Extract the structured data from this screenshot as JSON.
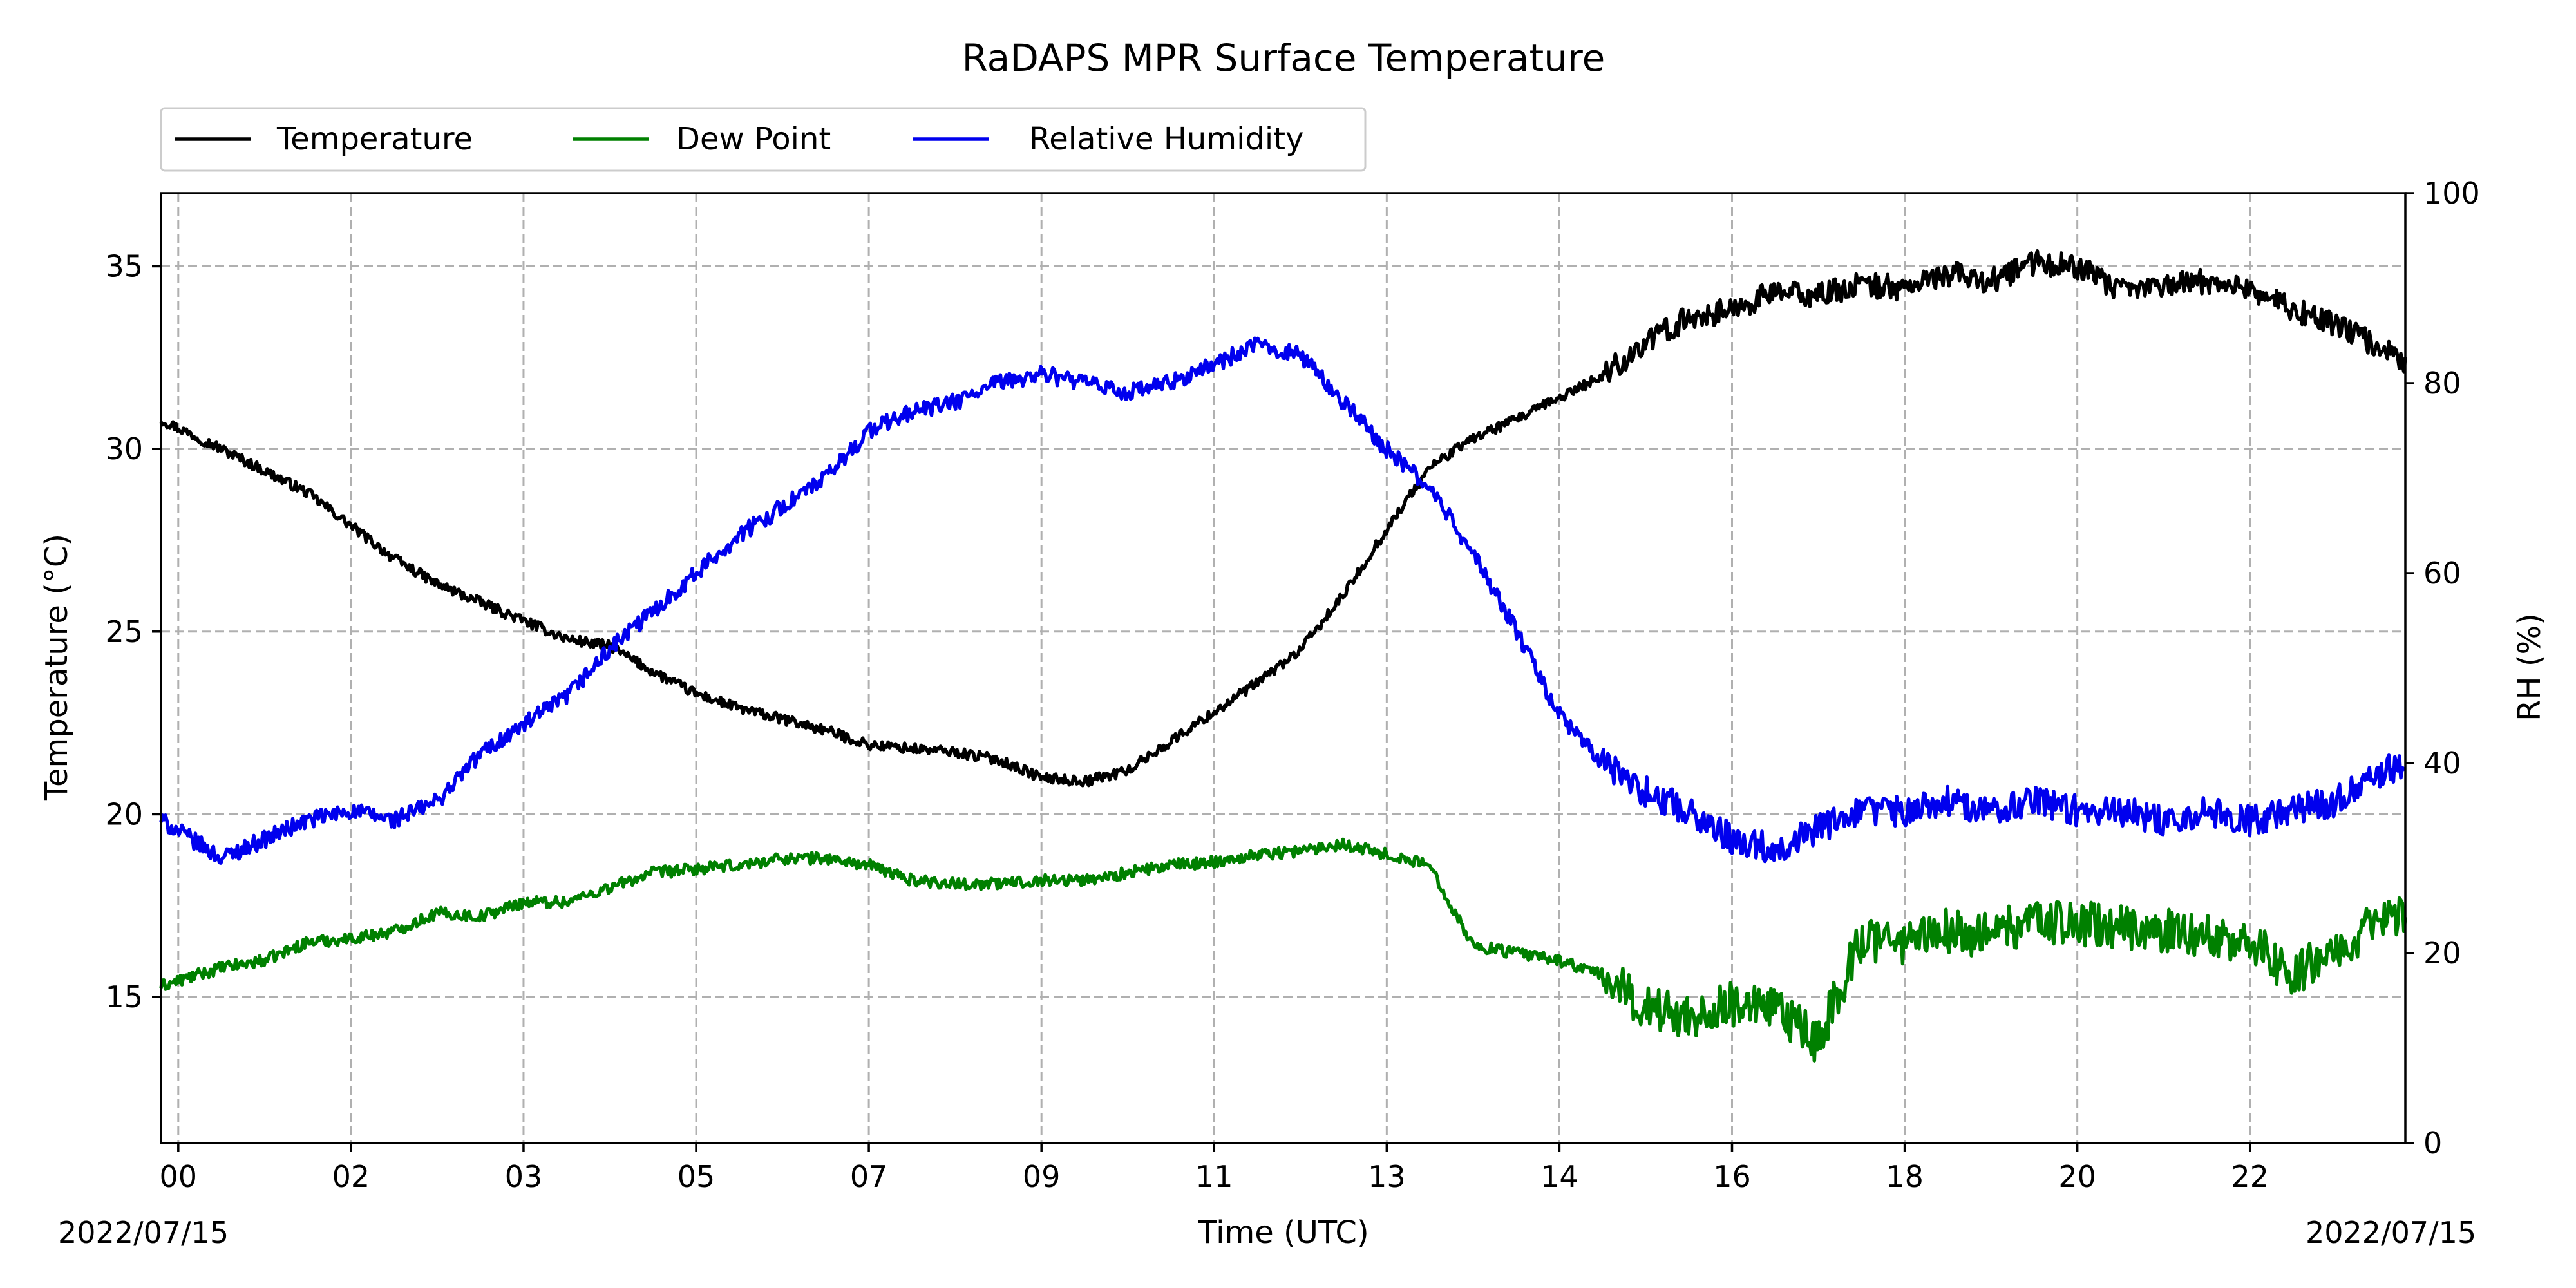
{
  "chart_data": {
    "type": "line",
    "title": "RaDAPS MPR Surface Temperature",
    "xlabel": "Time (UTC)",
    "ylabel": "Temperature ($^\\circ$C)",
    "ylabel_display": "Temperature (°C)",
    "y2label": "RH (%)",
    "ylim": [
      11,
      37
    ],
    "y2lim": [
      0,
      100
    ],
    "yticks": [
      15,
      20,
      25,
      30,
      35
    ],
    "y2ticks": [
      0,
      20,
      40,
      60,
      80,
      100
    ],
    "xlim_hours": [
      -0.2,
      25.8
    ],
    "xticks": [
      {
        "hour": 0,
        "label": "00"
      },
      {
        "hour": 2,
        "label": "02"
      },
      {
        "hour": 4,
        "label": "03"
      },
      {
        "hour": 6,
        "label": "05"
      },
      {
        "hour": 8,
        "label": "07"
      },
      {
        "hour": 10,
        "label": "09"
      },
      {
        "hour": 12,
        "label": "11"
      },
      {
        "hour": 14,
        "label": "13"
      },
      {
        "hour": 16,
        "label": "14"
      },
      {
        "hour": 18,
        "label": "16"
      },
      {
        "hour": 20,
        "label": "18"
      },
      {
        "hour": 22,
        "label": "20"
      },
      {
        "hour": 24,
        "label": "22"
      }
    ],
    "date_left": "2022/07/15",
    "date_right": "2022/07/15",
    "grid": true,
    "legend_placement": "top-left, above plot",
    "series": [
      {
        "name": "Temperature",
        "axis": "left",
        "color": "#000000",
        "x": [
          -0.2,
          0.5,
          1.0,
          1.5,
          2.0,
          2.5,
          3.0,
          3.5,
          4.0,
          4.5,
          5.0,
          5.5,
          6.0,
          6.5,
          7.0,
          7.5,
          8.0,
          8.5,
          9.0,
          9.5,
          10.0,
          10.5,
          11.0,
          11.5,
          12.0,
          12.5,
          13.0,
          13.5,
          14.0,
          14.5,
          15.0,
          15.5,
          16.0,
          16.5,
          17.0,
          17.5,
          18.0,
          18.5,
          19.0,
          19.5,
          20.0,
          20.5,
          21.0,
          21.5,
          22.0,
          22.5,
          23.0,
          23.5,
          24.0,
          24.5,
          25.0,
          25.5,
          25.8
        ],
        "y": [
          30.8,
          30.0,
          29.4,
          28.8,
          27.9,
          27.0,
          26.3,
          25.8,
          25.3,
          24.8,
          24.6,
          23.9,
          23.3,
          22.9,
          22.6,
          22.3,
          21.9,
          21.8,
          21.7,
          21.5,
          21.0,
          20.9,
          21.2,
          22.0,
          22.8,
          23.6,
          24.5,
          26.0,
          27.8,
          29.5,
          30.3,
          30.8,
          31.4,
          32.0,
          32.9,
          33.6,
          33.8,
          34.3,
          34.2,
          34.5,
          34.4,
          34.8,
          34.6,
          35.1,
          35.0,
          34.3,
          34.5,
          34.6,
          34.4,
          33.8,
          33.4,
          32.8,
          32.4
        ]
      },
      {
        "name": "Dew Point",
        "axis": "left",
        "color": "#008000",
        "x": [
          -0.2,
          0.5,
          1.0,
          1.5,
          2.0,
          2.5,
          3.0,
          3.5,
          4.0,
          4.5,
          5.0,
          5.5,
          6.0,
          6.5,
          7.0,
          7.5,
          8.0,
          8.5,
          9.0,
          9.5,
          10.0,
          10.5,
          11.0,
          11.5,
          12.0,
          12.5,
          13.0,
          13.5,
          14.0,
          14.5,
          15.0,
          15.5,
          16.0,
          16.5,
          17.0,
          17.5,
          18.0,
          18.5,
          19.0,
          19.5,
          20.0,
          20.5,
          21.0,
          21.5,
          22.0,
          22.5,
          23.0,
          23.5,
          24.0,
          24.5,
          25.0,
          25.5,
          25.8
        ],
        "y": [
          15.3,
          15.8,
          16.0,
          16.5,
          16.6,
          16.8,
          17.3,
          17.2,
          17.6,
          17.6,
          18.0,
          18.4,
          18.5,
          18.6,
          18.8,
          18.8,
          18.6,
          18.2,
          18.1,
          18.1,
          18.2,
          18.2,
          18.4,
          18.6,
          18.7,
          18.9,
          19.0,
          19.2,
          18.9,
          18.6,
          16.4,
          16.2,
          16.0,
          15.6,
          14.7,
          14.5,
          14.8,
          14.6,
          13.8,
          16.6,
          16.5,
          16.8,
          16.7,
          17.1,
          17.0,
          16.9,
          16.8,
          16.7,
          16.5,
          15.6,
          16.4,
          17.0,
          17.2
        ]
      },
      {
        "name": "Relative Humidity",
        "axis": "right",
        "color": "#0000ee",
        "x": [
          -0.2,
          0.5,
          1.0,
          1.5,
          2.0,
          2.5,
          3.0,
          3.5,
          4.0,
          4.5,
          5.0,
          5.5,
          6.0,
          6.5,
          7.0,
          7.5,
          8.0,
          8.5,
          9.0,
          9.5,
          10.0,
          10.5,
          11.0,
          11.5,
          12.0,
          12.5,
          13.0,
          13.5,
          14.0,
          14.5,
          15.0,
          15.5,
          16.0,
          16.5,
          17.0,
          17.5,
          18.0,
          18.5,
          19.0,
          19.5,
          20.0,
          20.5,
          21.0,
          21.5,
          22.0,
          22.5,
          23.0,
          23.5,
          24.0,
          24.5,
          25.0,
          25.5,
          25.8
        ],
        "y": [
          34,
          30,
          32,
          34,
          35,
          34,
          36,
          41,
          44,
          47,
          52,
          56,
          60,
          64,
          67,
          70,
          75,
          77,
          78,
          80,
          81,
          80,
          79,
          80,
          82,
          84,
          83,
          78,
          73,
          69,
          62,
          54,
          45,
          40,
          37,
          35,
          32,
          31,
          33,
          35,
          35,
          36,
          35,
          36,
          35,
          35,
          34,
          35,
          34,
          35,
          36,
          39,
          40
        ]
      }
    ]
  }
}
